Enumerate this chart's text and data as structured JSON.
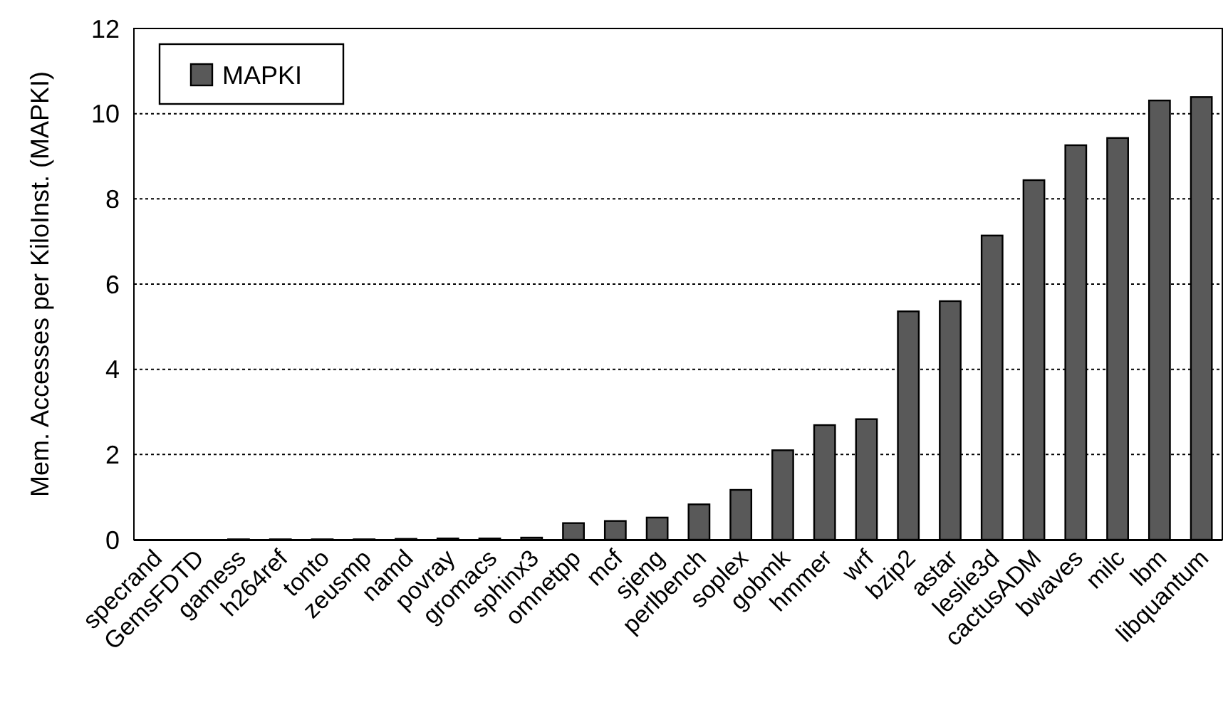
{
  "chart_data": {
    "type": "bar",
    "ylabel": "Mem. Accesses per KiloInst. (MAPKI)",
    "categories": [
      "specrand",
      "GemsFDTD",
      "gamess",
      "h264ref",
      "tonto",
      "zeusmp",
      "namd",
      "povray",
      "gromacs",
      "sphinx3",
      "omnetpp",
      "mcf",
      "sjeng",
      "perlbench",
      "soplex",
      "gobmk",
      "hmmer",
      "wrf",
      "bzip2",
      "astar",
      "leslie3d",
      "cactusADM",
      "bwaves",
      "milc",
      "lbm",
      "libquantum"
    ],
    "series": [
      {
        "name": "MAPKI",
        "color": "#595959",
        "values": [
          0,
          0,
          0.01,
          0.01,
          0.01,
          0.01,
          0.02,
          0.03,
          0.03,
          0.05,
          0.39,
          0.44,
          0.52,
          0.83,
          1.17,
          2.1,
          2.69,
          2.83,
          5.36,
          5.6,
          7.14,
          8.44,
          9.26,
          9.43,
          10.31,
          10.39
        ]
      }
    ],
    "ylim": [
      0,
      12
    ],
    "yticks": [
      0,
      2,
      4,
      6,
      8,
      10,
      12
    ],
    "grid": "y",
    "legend": "top left"
  }
}
